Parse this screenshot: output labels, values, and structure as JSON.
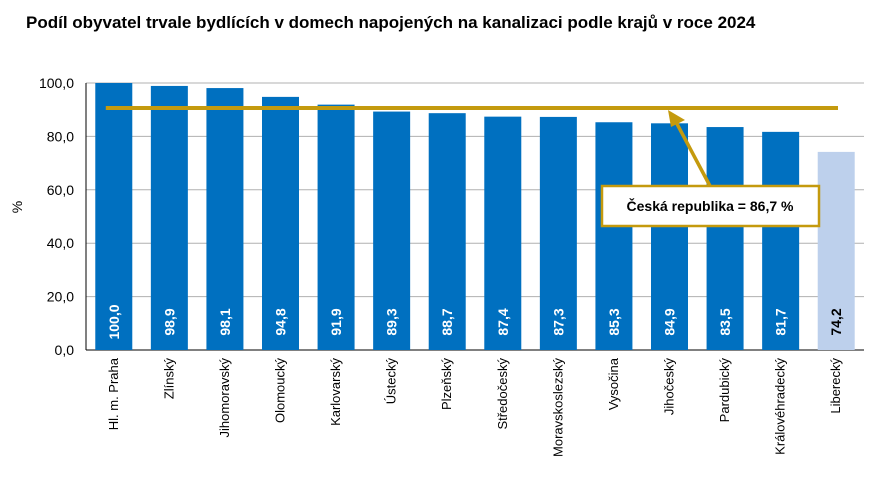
{
  "chart_data": {
    "type": "bar",
    "title": "Podíl obyvatel trvale bydlících v domech napojených na kanalizaci podle krajů v roce 2024",
    "ylabel": "%",
    "xlabel": "",
    "ylim": [
      0,
      100
    ],
    "yticks": [
      "0,0",
      "20,0",
      "40,0",
      "60,0",
      "80,0",
      "100,0"
    ],
    "categories": [
      "Hl. m. Praha",
      "Zlínský",
      "Jihomoravský",
      "Olomoucký",
      "Karlovarský",
      "Ústecký",
      "Plzeňský",
      "Středočeský",
      "Moravskoslezský",
      "Vysočina",
      "Jihočeský",
      "Pardubický",
      "Královéhradecký",
      "Liberecký"
    ],
    "values": [
      100.0,
      98.9,
      98.1,
      94.8,
      91.9,
      89.3,
      88.7,
      87.4,
      87.3,
      85.3,
      84.9,
      83.5,
      81.7,
      74.2
    ],
    "value_labels": [
      "100,0",
      "98,9",
      "98,1",
      "94,8",
      "91,9",
      "89,3",
      "88,7",
      "87,4",
      "87,3",
      "85,3",
      "84,9",
      "83,5",
      "81,7",
      "74,2"
    ],
    "highlight_index": 13,
    "reference_line": {
      "label": "Česká republika = 86,7 %",
      "value": 86.7
    },
    "colors": {
      "bar": "#0070c0",
      "highlight_bar": "#bdd0ec",
      "reference": "#c49a0e",
      "grid": "#b0b0b0"
    }
  }
}
